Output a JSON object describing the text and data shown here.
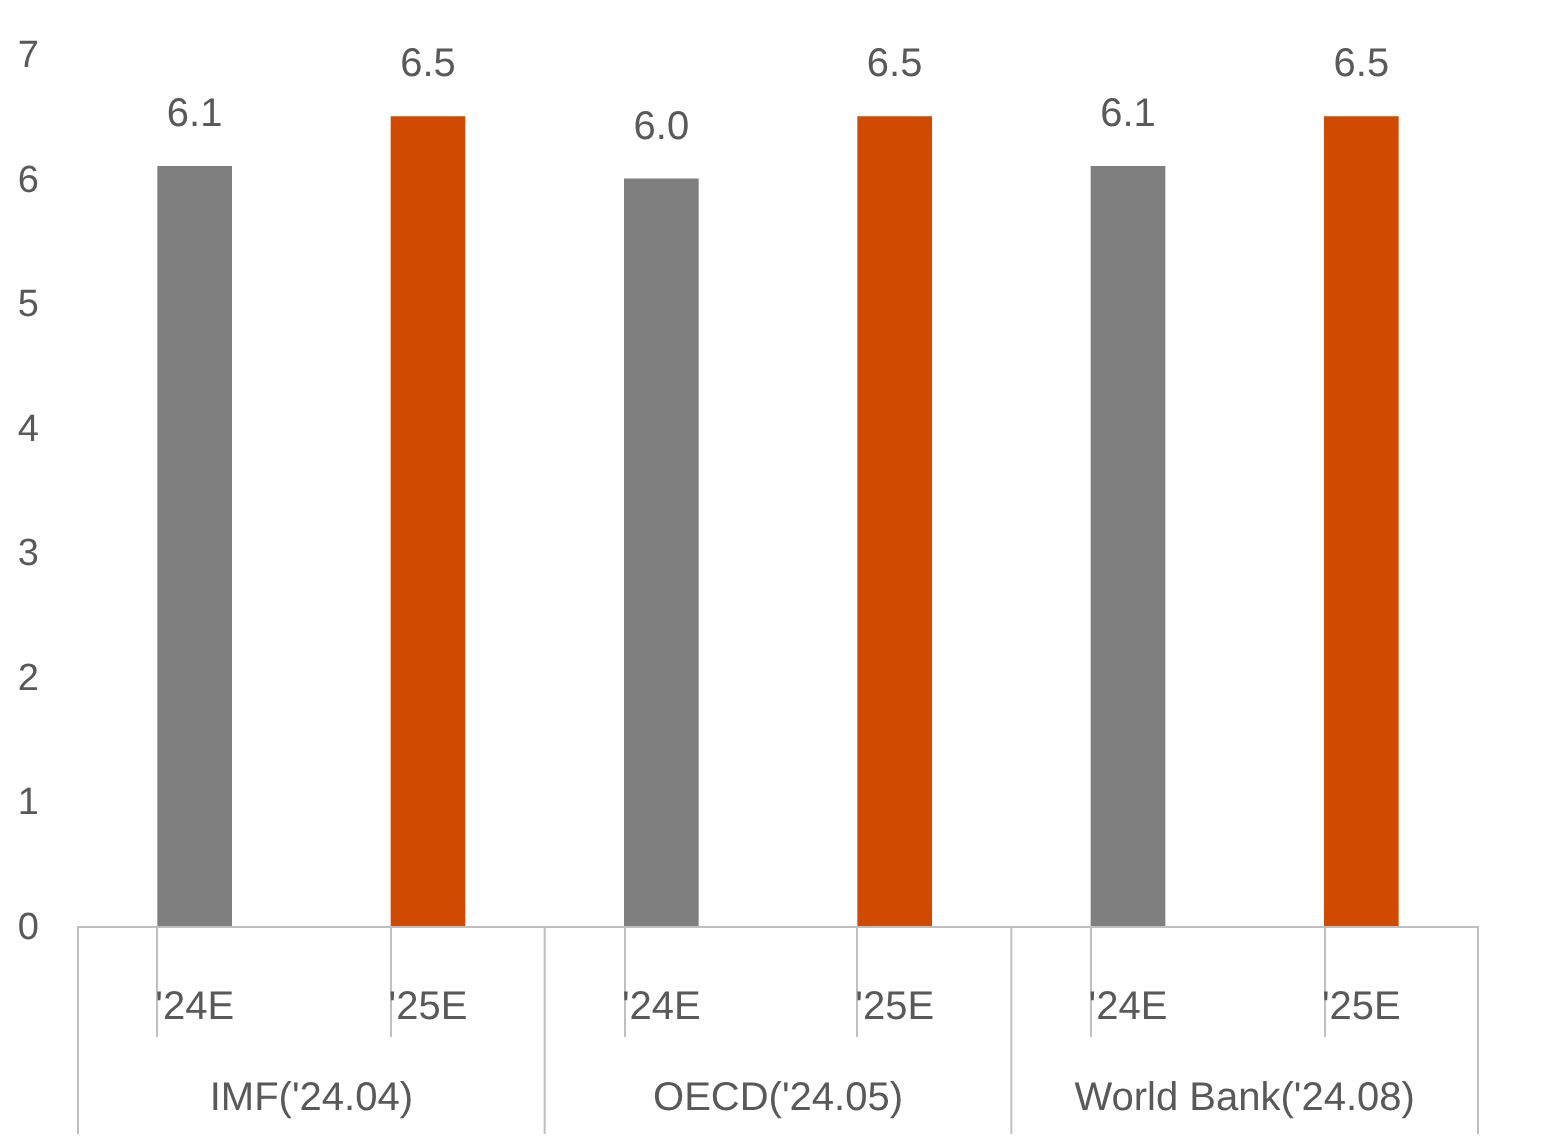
{
  "chart_data": {
    "type": "bar",
    "categories": [
      "'24E",
      "'25E",
      "'24E",
      "'25E",
      "'24E",
      "'25E"
    ],
    "values": [
      6.1,
      6.5,
      6.0,
      6.5,
      6.1,
      6.5
    ],
    "colors": [
      "#7f7f7f",
      "#d04a02",
      "#7f7f7f",
      "#d04a02",
      "#7f7f7f",
      "#d04a02"
    ],
    "value_labels": [
      "6.1",
      "6.5",
      "6.0",
      "6.5",
      "6.1",
      "6.5"
    ],
    "annotations": [
      "IMF('24.04)",
      "OECD('24.05)",
      "World Bank('24.08)"
    ],
    "ylim": [
      0,
      7
    ],
    "yticks": [
      0,
      1,
      2,
      3,
      4,
      5,
      6,
      7
    ],
    "grid": false
  }
}
